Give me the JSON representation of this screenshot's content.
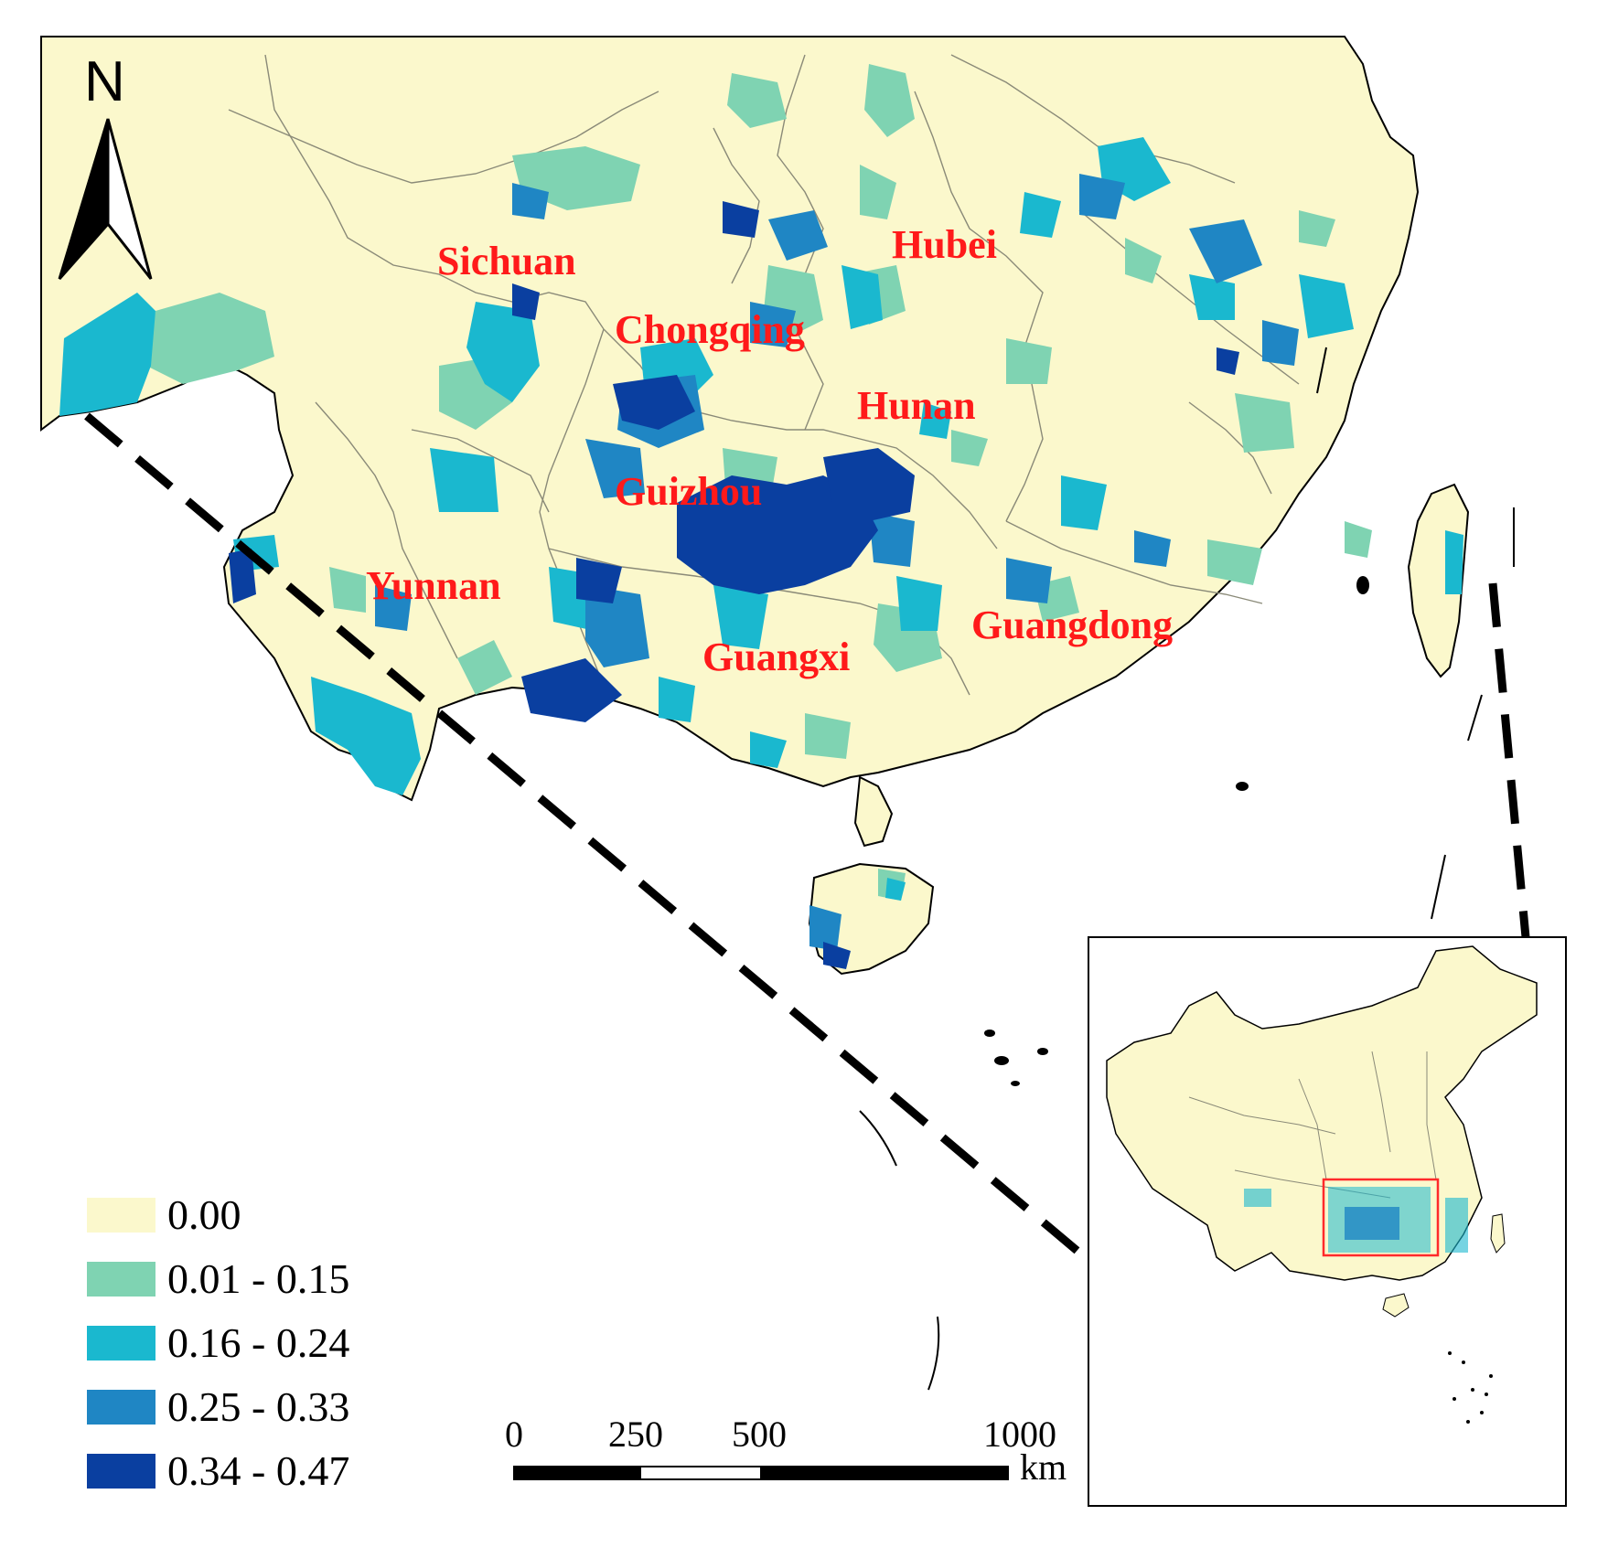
{
  "colors": {
    "land": "#fbf8cc",
    "boundary": "#8a8a78",
    "coast": "#000000",
    "class_0": "#fbf8cc",
    "class_1": "#7fd3b2",
    "class_2": "#1ab8cf",
    "class_3": "#1f86c4",
    "class_4": "#0a3fa0",
    "label_red": "#ff1a1a",
    "inset_box": "#ff2a2a"
  },
  "north_arrow": {
    "label": "N",
    "icon": "north-arrow-icon"
  },
  "provinces": [
    {
      "name": "Sichuan"
    },
    {
      "name": "Hubei"
    },
    {
      "name": "Chongqing"
    },
    {
      "name": "Hunan"
    },
    {
      "name": "Guizhou"
    },
    {
      "name": "Yunnan"
    },
    {
      "name": "Guangdong"
    },
    {
      "name": "Guangxi"
    }
  ],
  "legend": {
    "items": [
      {
        "label": "0.00",
        "color": "#fbf8cc"
      },
      {
        "label": "0.01 - 0.15",
        "color": "#7fd3b2"
      },
      {
        "label": "0.16 - 0.24",
        "color": "#1ab8cf"
      },
      {
        "label": "0.25 - 0.33",
        "color": "#1f86c4"
      },
      {
        "label": "0.34 - 0.47",
        "color": "#0a3fa0"
      }
    ]
  },
  "scale_bar": {
    "ticks": [
      "0",
      "250",
      "500",
      "1000"
    ],
    "unit": "km"
  }
}
